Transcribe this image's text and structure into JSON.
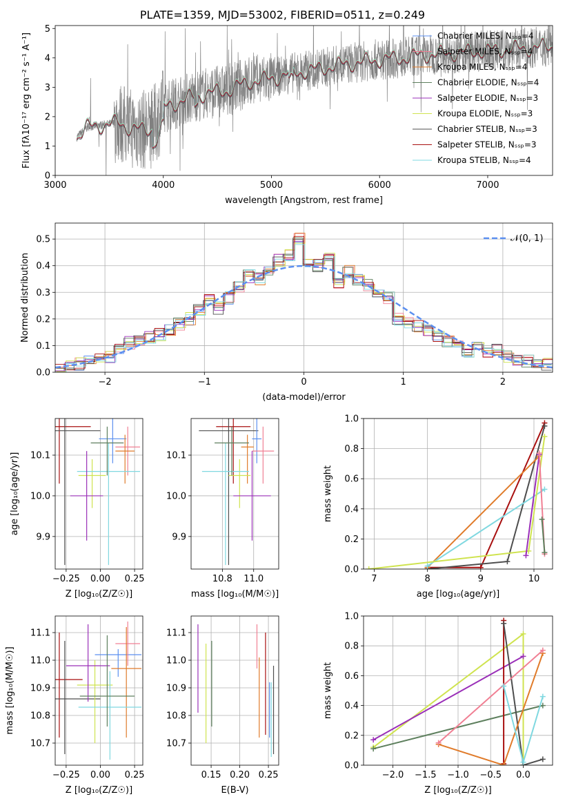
{
  "title": "PLATE=1359, MJD=53002, FIBERID=0511, z=0.249",
  "colors": {
    "chabrier_miles": "#5b8ff0",
    "salpeter_miles": "#f07f93",
    "kroupa_miles": "#e07b2a",
    "chabrier_elodie": "#5d7f5d",
    "salpeter_elodie": "#9a2fb8",
    "kroupa_elodie": "#cfe34f",
    "chabrier_stelib": "#4d4d4d",
    "salpeter_stelib": "#a80f0f",
    "kroupa_stelib": "#7fd8e0",
    "observed": "#808080",
    "gaussian": "#5b8ff0"
  },
  "chart_data": [
    {
      "type": "line",
      "xlabel": "wavelength [Angstrom, rest frame]",
      "ylabel": "Flux [fλ10⁻¹⁷ erg cm⁻² s⁻¹ A⁻¹]",
      "xlim": [
        3000,
        7600
      ],
      "ylim": [
        0,
        5.1
      ],
      "xticks": [
        "3000",
        "4000",
        "5000",
        "6000",
        "7000"
      ],
      "yticks": [
        "0",
        "1",
        "2",
        "3",
        "4",
        "5"
      ],
      "legend": [
        "Chabrier MILES, Nₛₛₚ=4",
        "Salpeter MILES, Nₛₛₚ=4",
        "Kroupa MILES, Nₛₛₚ=4",
        "Chabrier ELODIE, Nₛₛₚ=4",
        "Salpeter ELODIE, Nₛₛₚ=3",
        "Kroupa ELODIE, Nₛₛₚ=3",
        "Chabrier STELIB, Nₛₛₚ=3",
        "Salpeter STELIB, Nₛₛₚ=3",
        "Kroupa STELIB, Nₛₛₚ=4"
      ],
      "legend_location": "right",
      "spectrum_envelope": {
        "x": [
          3200,
          3300,
          3400,
          3500,
          3600,
          3700,
          3800,
          3900,
          4000,
          4200,
          4400,
          4600,
          4800,
          5000,
          5200,
          5400,
          5600,
          5800,
          6000,
          6200,
          6400,
          6600,
          6800,
          7000,
          7200,
          7400,
          7600
        ],
        "y": [
          1.3,
          1.65,
          1.7,
          1.75,
          1.8,
          1.6,
          1.55,
          1.6,
          2.3,
          2.6,
          2.8,
          2.9,
          3.2,
          3.3,
          3.5,
          3.6,
          3.75,
          3.85,
          3.95,
          4.0,
          4.1,
          4.15,
          4.2,
          4.25,
          4.3,
          4.35,
          4.4
        ]
      }
    },
    {
      "type": "line",
      "xlabel": "(data-model)/error",
      "ylabel": "Normed distribution",
      "xlim": [
        -2.5,
        2.5
      ],
      "ylim": [
        0,
        0.56
      ],
      "xticks": [
        "−2",
        "−1",
        "0",
        "1",
        "2"
      ],
      "yticks": [
        "0.0",
        "0.1",
        "0.2",
        "0.3",
        "0.4",
        "0.5"
      ],
      "legend": [
        "𝒩(0, 1)"
      ],
      "legend_location": "top-right",
      "histogram_bins": [
        -2.5,
        -2.4,
        -2.3,
        -2.2,
        -2.1,
        -2.0,
        -1.9,
        -1.8,
        -1.7,
        -1.6,
        -1.5,
        -1.4,
        -1.3,
        -1.2,
        -1.1,
        -1.0,
        -0.9,
        -0.8,
        -0.7,
        -0.6,
        -0.5,
        -0.4,
        -0.3,
        -0.2,
        -0.1,
        0.0,
        0.1,
        0.2,
        0.3,
        0.4,
        0.5,
        0.6,
        0.7,
        0.8,
        0.9,
        1.0,
        1.1,
        1.2,
        1.3,
        1.4,
        1.5,
        1.6,
        1.7,
        1.8,
        1.9,
        2.0,
        2.1,
        2.2,
        2.3,
        2.4,
        2.5
      ],
      "histogram_values": [
        0.01,
        0.02,
        0.03,
        0.04,
        0.05,
        0.06,
        0.08,
        0.11,
        0.12,
        0.13,
        0.14,
        0.16,
        0.18,
        0.2,
        0.23,
        0.27,
        0.24,
        0.28,
        0.32,
        0.36,
        0.35,
        0.38,
        0.42,
        0.44,
        0.5,
        0.42,
        0.4,
        0.44,
        0.34,
        0.38,
        0.35,
        0.33,
        0.3,
        0.28,
        0.2,
        0.19,
        0.17,
        0.16,
        0.14,
        0.12,
        0.1,
        0.08,
        0.09,
        0.07,
        0.08,
        0.06,
        0.05,
        0.04,
        0.04,
        0.03
      ]
    },
    {
      "type": "scatter",
      "xlabel": "Z [log₁₀(Z/Z☉)]",
      "ylabel": "age  [log₁₀(age/yr)]",
      "xlim": [
        -0.33,
        0.31
      ],
      "ylim": [
        9.82,
        10.19
      ],
      "xticks": [
        "−0.25",
        "0.00",
        "0.25"
      ],
      "yticks": [
        "9.9",
        "10.0",
        "10.1"
      ],
      "points": [
        {
          "x": -0.3,
          "y": 10.17,
          "xerr": 0.23,
          "ymin": 10.03,
          "ymax": 10.19,
          "c": "salpeter_stelib"
        },
        {
          "x": -0.26,
          "y": 10.16,
          "xerr": 0.26,
          "ymin": 9.83,
          "ymax": 10.19,
          "c": "chabrier_stelib"
        },
        {
          "x": 0.09,
          "y": 10.14,
          "xerr": 0.1,
          "ymin": 10.08,
          "ymax": 10.19,
          "c": "chabrier_miles"
        },
        {
          "x": 0.2,
          "y": 10.12,
          "xerr": 0.09,
          "ymin": 10.05,
          "ymax": 10.17,
          "c": "salpeter_miles"
        },
        {
          "x": 0.18,
          "y": 10.11,
          "xerr": 0.07,
          "ymin": 10.03,
          "ymax": 10.15,
          "c": "kroupa_miles"
        },
        {
          "x": -0.06,
          "y": 10.05,
          "xerr": 0.1,
          "ymin": 9.97,
          "ymax": 10.09,
          "c": "kroupa_elodie"
        },
        {
          "x": 0.06,
          "y": 10.06,
          "xerr": 0.23,
          "ymin": 9.83,
          "ymax": 10.13,
          "c": "kroupa_stelib"
        },
        {
          "x": -0.1,
          "y": 10.0,
          "xerr": 0.12,
          "ymin": 9.89,
          "ymax": 10.11,
          "c": "salpeter_elodie"
        },
        {
          "x": 0.05,
          "y": 10.13,
          "xerr": 0.12,
          "ymin": 10.05,
          "ymax": 10.17,
          "c": "chabrier_elodie"
        }
      ]
    },
    {
      "type": "scatter",
      "xlabel": "mass [log₁₀(M/M☉)]",
      "ylabel": "",
      "xlim": [
        10.6,
        11.16
      ],
      "ylim": [
        9.82,
        10.19
      ],
      "xticks": [
        "10.8",
        "11.0"
      ],
      "yticks": [
        "9.9",
        "10.0",
        "10.1"
      ],
      "points": [
        {
          "x": 10.87,
          "y": 10.17,
          "xerr": 0.11,
          "ymin": 10.03,
          "ymax": 10.19,
          "c": "salpeter_stelib"
        },
        {
          "x": 10.84,
          "y": 10.16,
          "xerr": 0.19,
          "ymin": 9.83,
          "ymax": 10.19,
          "c": "chabrier_stelib"
        },
        {
          "x": 11.02,
          "y": 10.14,
          "xerr": 0.03,
          "ymin": 10.08,
          "ymax": 10.19,
          "c": "chabrier_miles"
        },
        {
          "x": 11.06,
          "y": 10.11,
          "xerr": 0.07,
          "ymin": 10.03,
          "ymax": 10.17,
          "c": "salpeter_miles"
        },
        {
          "x": 10.96,
          "y": 10.12,
          "xerr": 0.04,
          "ymin": 10.03,
          "ymax": 10.15,
          "c": "kroupa_miles"
        },
        {
          "x": 10.91,
          "y": 10.05,
          "xerr": 0.07,
          "ymin": 9.97,
          "ymax": 10.09,
          "c": "kroupa_elodie"
        },
        {
          "x": 10.82,
          "y": 10.06,
          "xerr": 0.15,
          "ymin": 9.83,
          "ymax": 10.13,
          "c": "kroupa_stelib"
        },
        {
          "x": 10.99,
          "y": 10.0,
          "xerr": 0.12,
          "ymin": 9.89,
          "ymax": 10.11,
          "c": "salpeter_elodie"
        },
        {
          "x": 10.86,
          "y": 10.13,
          "xerr": 0.11,
          "ymin": 10.05,
          "ymax": 10.17,
          "c": "chabrier_elodie"
        }
      ]
    },
    {
      "type": "line",
      "xlabel": "age  [log₁₀(age/yr)]",
      "ylabel": "mass weight",
      "xlim": [
        6.8,
        10.35
      ],
      "ylim": [
        0,
        1.0
      ],
      "xticks": [
        "7",
        "8",
        "9",
        "10"
      ],
      "yticks": [
        "0.0",
        "0.2",
        "0.4",
        "0.6",
        "0.8",
        "1.0"
      ],
      "series": [
        {
          "c": "salpeter_stelib",
          "x": [
            8.0,
            9.0,
            10.2
          ],
          "y": [
            0.01,
            0.01,
            0.97
          ]
        },
        {
          "c": "chabrier_stelib",
          "x": [
            8.0,
            9.5,
            10.2
          ],
          "y": [
            0.0,
            0.05,
            0.95
          ]
        },
        {
          "c": "kroupa_miles",
          "x": [
            8.0,
            10.1
          ],
          "y": [
            0.01,
            0.75
          ]
        },
        {
          "c": "kroupa_stelib",
          "x": [
            8.0,
            10.2
          ],
          "y": [
            0.02,
            0.53
          ]
        },
        {
          "c": "kroupa_elodie",
          "x": [
            6.9,
            9.9,
            10.2
          ],
          "y": [
            0.0,
            0.12,
            0.88
          ]
        },
        {
          "c": "salpeter_elodie",
          "x": [
            9.85,
            10.1
          ],
          "y": [
            0.09,
            0.76
          ]
        },
        {
          "c": "salpeter_miles",
          "x": [
            10.1,
            10.2
          ],
          "y": [
            0.77,
            0.1
          ]
        },
        {
          "c": "chabrier_elodie",
          "x": [
            10.15,
            10.2
          ],
          "y": [
            0.33,
            0.11
          ]
        }
      ]
    },
    {
      "type": "scatter",
      "xlabel": "Z [log₁₀(Z/Z☉)]",
      "ylabel": "mass [log₁₀(M/M☉)]",
      "xlim": [
        -0.33,
        0.31
      ],
      "ylim": [
        10.62,
        11.16
      ],
      "xticks": [
        "−0.25",
        "0.00",
        "0.25"
      ],
      "yticks": [
        "10.7",
        "10.8",
        "10.9",
        "11.0",
        "11.1"
      ],
      "points": [
        {
          "x": -0.3,
          "y": 10.93,
          "xerr": 0.17,
          "ymin": 10.72,
          "ymax": 11.1,
          "c": "salpeter_stelib"
        },
        {
          "x": -0.26,
          "y": 10.86,
          "xerr": 0.26,
          "ymin": 10.66,
          "ymax": 11.07,
          "c": "chabrier_stelib"
        },
        {
          "x": 0.13,
          "y": 11.02,
          "xerr": 0.17,
          "ymin": 10.94,
          "ymax": 11.04,
          "c": "chabrier_miles"
        },
        {
          "x": 0.2,
          "y": 11.06,
          "xerr": 0.09,
          "ymin": 10.98,
          "ymax": 11.14,
          "c": "salpeter_miles"
        },
        {
          "x": 0.19,
          "y": 10.97,
          "xerr": 0.11,
          "ymin": 10.72,
          "ymax": 11.12,
          "c": "kroupa_miles"
        },
        {
          "x": -0.04,
          "y": 10.91,
          "xerr": 0.13,
          "ymin": 10.7,
          "ymax": 11.0,
          "c": "kroupa_elodie"
        },
        {
          "x": 0.07,
          "y": 10.83,
          "xerr": 0.23,
          "ymin": 10.64,
          "ymax": 10.96,
          "c": "kroupa_stelib"
        },
        {
          "x": -0.09,
          "y": 10.98,
          "xerr": 0.16,
          "ymin": 10.85,
          "ymax": 11.13,
          "c": "salpeter_elodie"
        },
        {
          "x": 0.05,
          "y": 10.87,
          "xerr": 0.2,
          "ymin": 10.76,
          "ymax": 11.09,
          "c": "chabrier_elodie"
        }
      ]
    },
    {
      "type": "scatter",
      "xlabel": "E(B-V)",
      "ylabel": "",
      "xlim": [
        0.115,
        0.268
      ],
      "ylim": [
        10.62,
        11.16
      ],
      "xticks": [
        "0.15",
        "0.20",
        "0.25"
      ],
      "yticks": [
        "10.7",
        "10.8",
        "10.9",
        "11.0",
        "11.1"
      ],
      "points": [
        {
          "x": 0.127,
          "ymin": 10.81,
          "ymax": 11.13,
          "c": "salpeter_elodie"
        },
        {
          "x": 0.141,
          "ymin": 10.7,
          "ymax": 11.06,
          "c": "kroupa_elodie"
        },
        {
          "x": 0.151,
          "ymin": 10.76,
          "ymax": 11.07,
          "c": "chabrier_elodie"
        },
        {
          "x": 0.23,
          "ymin": 10.97,
          "ymax": 11.13,
          "c": "salpeter_miles"
        },
        {
          "x": 0.234,
          "ymin": 10.72,
          "ymax": 11.01,
          "c": "kroupa_miles"
        },
        {
          "x": 0.245,
          "ymin": 10.73,
          "ymax": 11.1,
          "c": "salpeter_stelib"
        },
        {
          "x": 0.252,
          "ymin": 10.72,
          "ymax": 10.92,
          "c": "chabrier_miles"
        },
        {
          "x": 0.255,
          "ymin": 10.65,
          "ymax": 10.92,
          "c": "kroupa_stelib"
        },
        {
          "x": 0.259,
          "ymin": 10.66,
          "ymax": 10.98,
          "c": "chabrier_stelib"
        }
      ]
    },
    {
      "type": "line",
      "xlabel": "Z [log₁₀(Z/Z☉)]",
      "ylabel": "mass weight",
      "xlim": [
        -2.45,
        0.45
      ],
      "ylim": [
        0,
        1.0
      ],
      "xticks": [
        "−2.0",
        "−1.5",
        "−1.0",
        "−0.5",
        "0.0"
      ],
      "yticks": [
        "0.0",
        "0.2",
        "0.4",
        "0.6",
        "0.8",
        "1.0"
      ],
      "series": [
        {
          "c": "kroupa_elodie",
          "x": [
            -2.3,
            0.0,
            0.0
          ],
          "y": [
            0.12,
            0.88,
            0.0
          ]
        },
        {
          "c": "salpeter_elodie",
          "x": [
            -2.3,
            0.0
          ],
          "y": [
            0.17,
            0.73
          ]
        },
        {
          "c": "chabrier_elodie",
          "x": [
            -2.3,
            0.3
          ],
          "y": [
            0.11,
            0.4
          ]
        },
        {
          "c": "salpeter_stelib",
          "x": [
            -0.3,
            -0.3
          ],
          "y": [
            0.97,
            0.01
          ]
        },
        {
          "c": "chabrier_stelib",
          "x": [
            -0.3,
            0.0,
            0.3
          ],
          "y": [
            0.95,
            0.0,
            0.04
          ]
        },
        {
          "c": "kroupa_miles",
          "x": [
            -1.3,
            -0.3,
            0.3
          ],
          "y": [
            0.14,
            0.0,
            0.75
          ]
        },
        {
          "c": "salpeter_miles",
          "x": [
            -1.3,
            0.3
          ],
          "y": [
            0.15,
            0.77
          ]
        },
        {
          "c": "kroupa_stelib",
          "x": [
            -0.3,
            0.0,
            0.3
          ],
          "y": [
            0.53,
            0.02,
            0.46
          ]
        }
      ]
    }
  ]
}
